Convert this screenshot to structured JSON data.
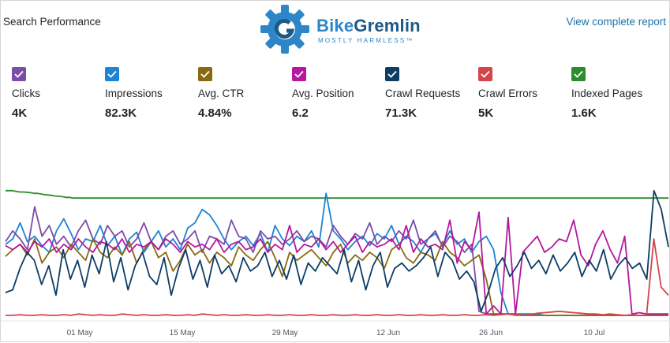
{
  "header": {
    "title": "Search Performance",
    "link_label": "View complete report"
  },
  "logo": {
    "name_part1": "Bike",
    "name_part2": "Gremlin",
    "tagline": "MOSTLY HARMLESS™"
  },
  "metrics": [
    {
      "label": "Clicks",
      "value": "4K",
      "color": "#7b4ca8"
    },
    {
      "label": "Impressions",
      "value": "82.3K",
      "color": "#1d83d3"
    },
    {
      "label": "Avg. CTR",
      "value": "4.84%",
      "color": "#8a6a10"
    },
    {
      "label": "Avg. Position",
      "value": "6.2",
      "color": "#b5179e"
    },
    {
      "label": "Crawl Requests",
      "value": "71.3K",
      "color": "#0d3d66"
    },
    {
      "label": "Crawl Errors",
      "value": "5K",
      "color": "#d5444a"
    },
    {
      "label": "Indexed Pages",
      "value": "1.6K",
      "color": "#2c8d2c"
    }
  ],
  "chart_data": {
    "type": "line",
    "x_labels": [
      "01 May",
      "15 May",
      "29 May",
      "12 Jun",
      "26 Jun",
      "10 Jul"
    ],
    "grid": false,
    "legend": "top",
    "series": [
      {
        "name": "Indexed Pages",
        "color": "#2c8d2c",
        "values": [
          0.96,
          0.96,
          0.96,
          0.955,
          0.95,
          0.95,
          0.948,
          0.945,
          0.94,
          0.94,
          0.935,
          0.93,
          0.928,
          0.925,
          0.92,
          0.918,
          0.915,
          0.91,
          0.91,
          0.905,
          0.905,
          0.905,
          0.905,
          0.905,
          0.905,
          0.905,
          0.905,
          0.905,
          0.905,
          0.905,
          0.905,
          0.905,
          0.905,
          0.905,
          0.905,
          0.905,
          0.905,
          0.905,
          0.905,
          0.905,
          0.905,
          0.905,
          0.905,
          0.905,
          0.905,
          0.905,
          0.905,
          0.905,
          0.905,
          0.905,
          0.905,
          0.905,
          0.905,
          0.905,
          0.905,
          0.905,
          0.905,
          0.905,
          0.905,
          0.905,
          0.905,
          0.905,
          0.905,
          0.905,
          0.905,
          0.905,
          0.905,
          0.905,
          0.905,
          0.905,
          0.905,
          0.905,
          0.905,
          0.905,
          0.905,
          0.905,
          0.905,
          0.905,
          0.905,
          0.905,
          0.905,
          0.905,
          0.905,
          0.905,
          0.905,
          0.905,
          0.905,
          0.905,
          0.905,
          0.905,
          0.905,
          0.905,
          0.905,
          0.905,
          0.905,
          0.905,
          0.905,
          0.905,
          0.905,
          0.905,
          0.905,
          0.905,
          0.905,
          0.905,
          0.905,
          0.905,
          0.905,
          0.905,
          0.905,
          0.905,
          0.905,
          0.905,
          0.905,
          0.905,
          0.905,
          0.905,
          0.905,
          0.905,
          0.905,
          0.905,
          0.905,
          0.905,
          0.905,
          0.905,
          0.905,
          0.905,
          0.905,
          0.905,
          0.905,
          0.905,
          0.905,
          0.905,
          0.905,
          0.905,
          0.905,
          0.905,
          0.905,
          0.905,
          0.905,
          0.905,
          0.905,
          0.905,
          0.905,
          0.905,
          0.905,
          0.905,
          0.905,
          0.905,
          0.905,
          0.905,
          0.905,
          0.905,
          0.905,
          0.905,
          0.905,
          0.905,
          0.905,
          0.905,
          0.905,
          0.905,
          0.905,
          0.905,
          0.905,
          0.905,
          0.905,
          0.905,
          0.905,
          0.905,
          0.905,
          0.905,
          0.905,
          0.905,
          0.905,
          0.905,
          0.905,
          0.905,
          0.905,
          0.905,
          0.905,
          0.905,
          0.905,
          0.905,
          0.905,
          0.905,
          0.905,
          0.905,
          0.905,
          0.905
        ]
      },
      {
        "name": "Impressions",
        "color": "#1d83d3",
        "values": [
          0.56,
          0.6,
          0.72,
          0.58,
          0.62,
          0.55,
          0.5,
          0.66,
          0.75,
          0.64,
          0.52,
          0.6,
          0.58,
          0.7,
          0.55,
          0.62,
          0.48,
          0.6,
          0.65,
          0.5,
          0.58,
          0.66,
          0.54,
          0.6,
          0.52,
          0.68,
          0.72,
          0.82,
          0.78,
          0.7,
          0.6,
          0.52,
          0.58,
          0.62,
          0.55,
          0.64,
          0.5,
          0.7,
          0.6,
          0.55,
          0.62,
          0.58,
          0.66,
          0.54,
          0.94,
          0.66,
          0.6,
          0.52,
          0.58,
          0.62,
          0.55,
          0.64,
          0.6,
          0.7,
          0.56,
          0.62,
          0.58,
          0.5,
          0.6,
          0.64,
          0.55,
          0.66,
          0.56,
          0.6,
          0.5,
          0.58,
          0.62,
          0.52,
          0.2,
          0.04,
          0.04,
          0.04,
          0.04,
          0.04,
          0.03,
          0.03,
          0.03,
          0.03,
          0.03,
          0.03,
          0.03,
          0.03,
          0.03,
          0.03,
          0.03,
          0.03,
          0.03,
          0.03,
          0.03,
          0.03,
          0.03,
          0.03
        ]
      },
      {
        "name": "Clicks",
        "color": "#7b4ca8",
        "values": [
          0.58,
          0.66,
          0.6,
          0.52,
          0.84,
          0.62,
          0.7,
          0.56,
          0.62,
          0.54,
          0.66,
          0.74,
          0.6,
          0.56,
          0.7,
          0.62,
          0.66,
          0.54,
          0.6,
          0.72,
          0.58,
          0.52,
          0.62,
          0.66,
          0.56,
          0.6,
          0.66,
          0.5,
          0.62,
          0.6,
          0.56,
          0.74,
          0.62,
          0.6,
          0.5,
          0.66,
          0.6,
          0.62,
          0.56,
          0.6,
          0.66,
          0.58,
          0.62,
          0.6,
          0.54,
          0.7,
          0.62,
          0.56,
          0.64,
          0.6,
          0.72,
          0.56,
          0.62,
          0.58,
          0.66,
          0.6,
          0.74,
          0.56,
          0.6,
          0.66,
          0.54,
          0.62,
          0.58,
          0.5,
          0.56,
          0.06,
          0.04,
          0.04,
          0.04,
          0.04,
          0.03,
          0.03,
          0.03,
          0.03,
          0.03,
          0.03,
          0.03,
          0.03,
          0.03,
          0.03,
          0.03,
          0.03,
          0.03,
          0.03,
          0.03,
          0.03,
          0.03,
          0.03,
          0.03,
          0.03,
          0.03,
          0.03
        ]
      },
      {
        "name": "Avg. CTR",
        "color": "#8a6a10",
        "values": [
          0.47,
          0.52,
          0.56,
          0.48,
          0.6,
          0.42,
          0.5,
          0.54,
          0.46,
          0.56,
          0.5,
          0.44,
          0.6,
          0.5,
          0.46,
          0.54,
          0.48,
          0.58,
          0.42,
          0.52,
          0.58,
          0.46,
          0.5,
          0.36,
          0.44,
          0.56,
          0.48,
          0.52,
          0.42,
          0.5,
          0.46,
          0.4,
          0.54,
          0.48,
          0.44,
          0.52,
          0.58,
          0.46,
          0.32,
          0.5,
          0.44,
          0.48,
          0.52,
          0.46,
          0.4,
          0.5,
          0.56,
          0.42,
          0.48,
          0.44,
          0.5,
          0.46,
          0.38,
          0.52,
          0.56,
          0.46,
          0.42,
          0.5,
          0.48,
          0.44,
          0.58,
          0.5,
          0.46,
          0.4,
          0.44,
          0.48,
          0.3,
          0.04,
          0.04,
          0.04,
          0.04,
          0.03,
          0.03,
          0.03,
          0.03,
          0.03,
          0.03,
          0.03,
          0.03,
          0.03,
          0.03,
          0.03,
          0.03,
          0.03,
          0.03,
          0.03,
          0.03,
          0.03,
          0.03,
          0.03,
          0.03,
          0.03
        ]
      },
      {
        "name": "Avg. Position",
        "color": "#b5179e",
        "values": [
          0.55,
          0.52,
          0.56,
          0.5,
          0.58,
          0.54,
          0.6,
          0.5,
          0.56,
          0.52,
          0.6,
          0.54,
          0.5,
          0.58,
          0.56,
          0.52,
          0.6,
          0.5,
          0.56,
          0.54,
          0.58,
          0.52,
          0.6,
          0.56,
          0.5,
          0.58,
          0.54,
          0.56,
          0.52,
          0.6,
          0.5,
          0.56,
          0.58,
          0.52,
          0.54,
          0.6,
          0.5,
          0.56,
          0.52,
          0.7,
          0.5,
          0.56,
          0.54,
          0.6,
          0.52,
          0.58,
          0.5,
          0.56,
          0.62,
          0.5,
          0.58,
          0.54,
          0.56,
          0.6,
          0.52,
          0.7,
          0.5,
          0.6,
          0.54,
          0.56,
          0.52,
          0.74,
          0.42,
          0.58,
          0.52,
          0.8,
          0.04,
          0.1,
          0.04,
          0.76,
          0.04,
          0.5,
          0.56,
          0.62,
          0.5,
          0.54,
          0.6,
          0.58,
          0.74,
          0.48,
          0.4,
          0.56,
          0.66,
          0.52,
          0.42,
          0.62,
          0.04,
          0.05,
          0.04,
          0.04,
          0.04,
          0.04
        ]
      },
      {
        "name": "Crawl Requests",
        "color": "#0d3d66",
        "values": [
          0.2,
          0.22,
          0.38,
          0.5,
          0.44,
          0.26,
          0.4,
          0.18,
          0.52,
          0.3,
          0.44,
          0.24,
          0.48,
          0.34,
          0.58,
          0.28,
          0.46,
          0.22,
          0.4,
          0.5,
          0.32,
          0.26,
          0.46,
          0.18,
          0.38,
          0.52,
          0.3,
          0.44,
          0.24,
          0.48,
          0.34,
          0.4,
          0.28,
          0.46,
          0.36,
          0.4,
          0.5,
          0.32,
          0.44,
          0.3,
          0.48,
          0.26,
          0.42,
          0.36,
          0.46,
          0.4,
          0.34,
          0.52,
          0.28,
          0.44,
          0.22,
          0.4,
          0.5,
          0.24,
          0.38,
          0.42,
          0.36,
          0.4,
          0.46,
          0.54,
          0.32,
          0.5,
          0.44,
          0.3,
          0.36,
          0.28,
          0.06,
          0.2,
          0.38,
          0.46,
          0.32,
          0.4,
          0.5,
          0.38,
          0.44,
          0.34,
          0.48,
          0.36,
          0.42,
          0.5,
          0.32,
          0.44,
          0.36,
          0.52,
          0.3,
          0.4,
          0.46,
          0.38,
          0.42,
          0.3,
          0.96,
          0.82,
          0.54
        ]
      },
      {
        "name": "Crawl Errors",
        "color": "#d5444a",
        "values": [
          0.03,
          0.03,
          0.035,
          0.03,
          0.03,
          0.035,
          0.03,
          0.03,
          0.035,
          0.03,
          0.04,
          0.035,
          0.03,
          0.035,
          0.03,
          0.03,
          0.04,
          0.035,
          0.03,
          0.035,
          0.03,
          0.03,
          0.035,
          0.03,
          0.03,
          0.035,
          0.03,
          0.04,
          0.035,
          0.03,
          0.035,
          0.03,
          0.03,
          0.035,
          0.03,
          0.03,
          0.035,
          0.03,
          0.03,
          0.035,
          0.03,
          0.03,
          0.035,
          0.03,
          0.03,
          0.035,
          0.03,
          0.03,
          0.035,
          0.03,
          0.03,
          0.035,
          0.03,
          0.03,
          0.035,
          0.03,
          0.03,
          0.035,
          0.03,
          0.03,
          0.035,
          0.03,
          0.03,
          0.035,
          0.03,
          0.03,
          0.035,
          0.03,
          0.035,
          0.04,
          0.035,
          0.03,
          0.035,
          0.045,
          0.05,
          0.055,
          0.06,
          0.055,
          0.05,
          0.045,
          0.04,
          0.04,
          0.035,
          0.04,
          0.035,
          0.03,
          0.035,
          0.03,
          0.03,
          0.6,
          0.24,
          0.18
        ]
      }
    ]
  }
}
